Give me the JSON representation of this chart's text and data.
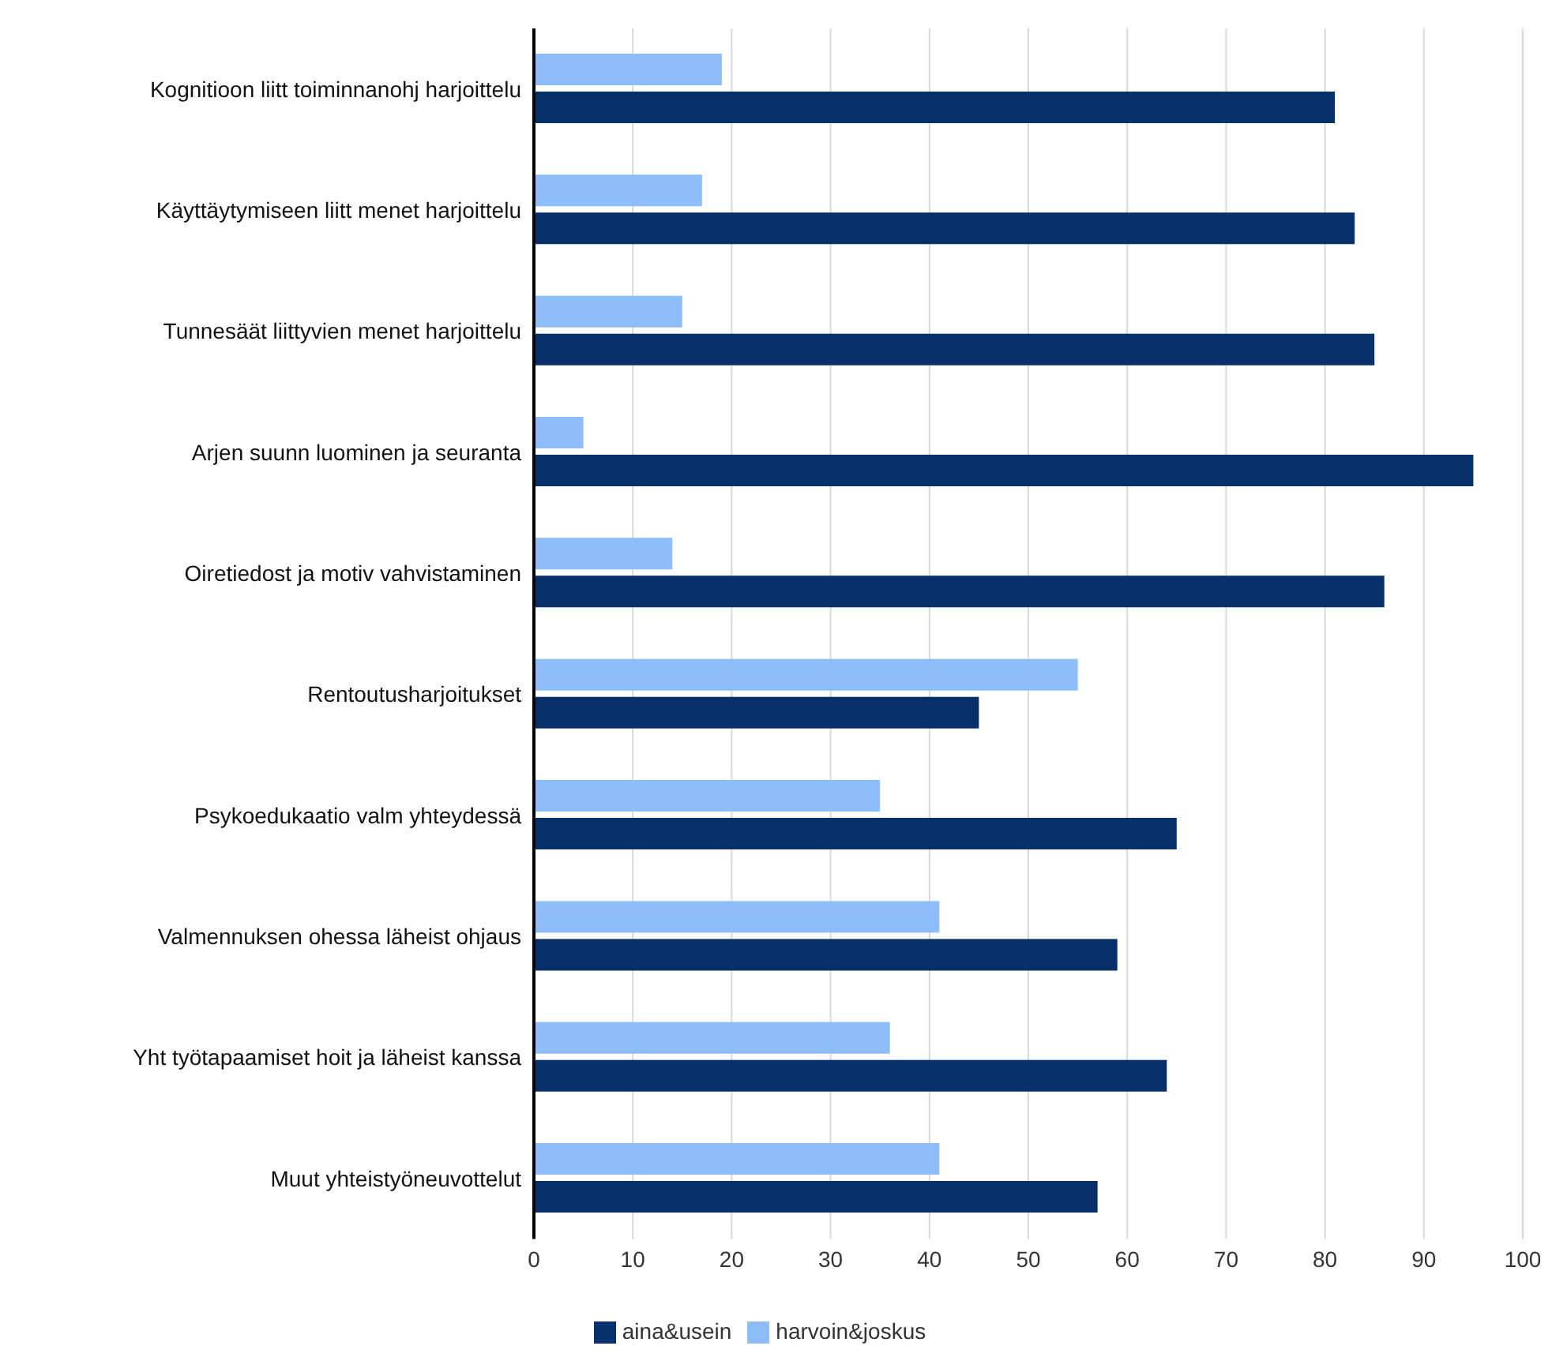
{
  "chart_data": {
    "type": "bar",
    "orientation": "horizontal",
    "categories": [
      "Kognitioon liitt toiminnanohj harjoittelu",
      "Käyttäytymiseen liitt menet harjoittelu",
      "Tunnesäät liittyvien menet harjoittelu",
      "Arjen suunn luominen ja seuranta",
      "Oiretiedost ja motiv vahvistaminen",
      "Rentoutusharjoitukset",
      "Psykoedukaatio valm yhteydessä",
      "Valmennuksen ohessa läheist ohjaus",
      "Yht työtapaamiset hoit ja läheist kanssa",
      "Muut yhteistyöneuvottelut"
    ],
    "series": [
      {
        "name": "harvoin&joskus",
        "color": "#8fbcfb",
        "values": [
          19,
          17,
          15,
          5,
          14,
          55,
          35,
          41,
          36,
          41
        ]
      },
      {
        "name": "aina&usein",
        "color": "#072f6b",
        "values": [
          81,
          83,
          85,
          95,
          86,
          45,
          65,
          59,
          64,
          57
        ]
      }
    ],
    "xlim": [
      0,
      100
    ],
    "xticks": [
      0,
      10,
      20,
      30,
      40,
      50,
      60,
      70,
      80,
      90,
      100
    ],
    "grid": "x",
    "legend": "bottom"
  }
}
